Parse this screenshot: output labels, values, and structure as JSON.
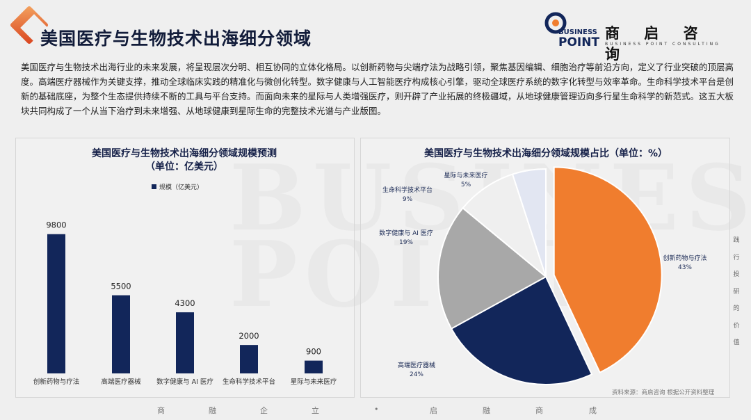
{
  "page": {
    "title": "美国医疗与生物技术出海细分领域",
    "intro": "美国医疗与生物技术出海行业的未来发展，将呈现层次分明、相互协同的立体化格局。以创新药物与尖端疗法为战略引领，聚焦基因编辑、细胞治疗等前沿方向，定义了行业突破的顶层高度。高端医疗器械作为关键支撑，推动全球临床实践的精准化与微创化转型。数字健康与人工智能医疗构成核心引擎，驱动全球医疗系统的数字化转型与效率革命。生命科学技术平台是创新的基础底座，为整个生态提供持续不断的工具与平台支持。而面向未来的星际与人类增强医疗，则开辟了产业拓展的终极疆域，从地球健康管理迈向多行星生命科学的新范式。这五大板块共同构成了一个从当下治疗到未来增强、从地球健康到星际生命的完整技术光谱与产业版图。",
    "source": "资料来源：商启咨询 根据公开资料整理",
    "side_text": [
      "践",
      "行",
      "投",
      "研",
      "的",
      "价",
      "值"
    ],
    "footer": [
      "商",
      "融",
      "企",
      "立",
      "•",
      "启",
      "融",
      "商",
      "成"
    ],
    "watermark": "BUSINESS POINT"
  },
  "logo": {
    "brand_cn": "商 启 咨 询",
    "brand_en_1": "BUSINESS",
    "brand_en_2": "POINT",
    "tagline": "BUSINESS POINT CONSULTING",
    "icon": "business-point-logo-icon"
  },
  "colors": {
    "accent_orange": "#f07d2e",
    "navy": "#12265a",
    "gray": "#a8a8a8",
    "light_gray": "#efefef",
    "lightest": "#e2e6f2"
  },
  "chart_data": [
    {
      "type": "bar",
      "title": "美国医疗与生物技术出海细分领域规模预测",
      "subtitle": "（单位：亿美元）",
      "legend": "规模（亿美元）",
      "categories": [
        "创新药物与疗法",
        "高端医疗器械",
        "数字健康与 AI 医疗",
        "生命科学技术平台",
        "星际与未来医疗"
      ],
      "series": [
        {
          "name": "规模（亿美元）",
          "values": [
            9800,
            5500,
            4300,
            2000,
            900
          ]
        }
      ],
      "ylim": [
        0,
        11500
      ],
      "grid": false,
      "legend_position": "top"
    },
    {
      "type": "pie",
      "title": "美国医疗与生物技术出海细分领域规模占比（单位：%）",
      "labels": [
        "创新药物与疗法",
        "高端医疗器械",
        "数字健康与 AI 医疗",
        "生命科学技术平台",
        "星际与未来医疗"
      ],
      "values": [
        43,
        24,
        19,
        9,
        5
      ],
      "value_labels": [
        "43%",
        "24%",
        "19%",
        "9%",
        "5%"
      ],
      "colors": [
        "#f07d2e",
        "#12265a",
        "#a8a8a8",
        "#efefef",
        "#e2e6f2"
      ],
      "exploded": [
        true,
        false,
        false,
        false,
        false
      ]
    }
  ]
}
